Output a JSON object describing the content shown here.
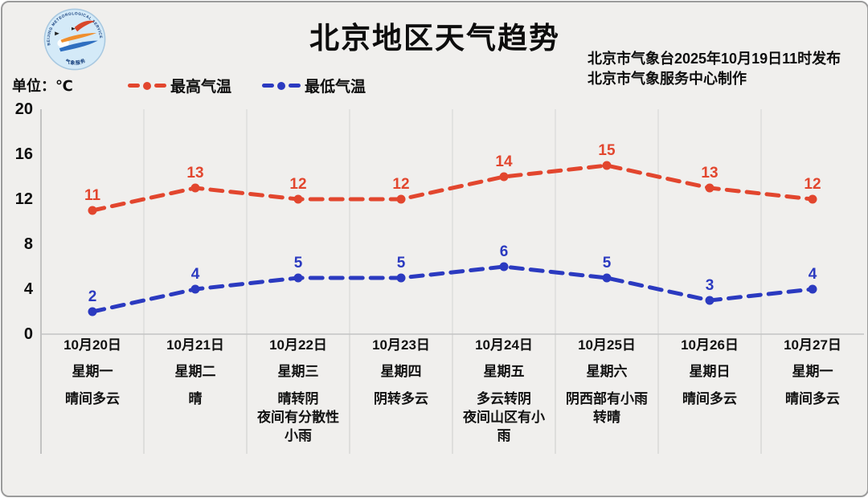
{
  "header": {
    "title": "北京地区天气趋势",
    "issued_line1": "北京市气象台2025年10月19日11时发布",
    "issued_line2": "北京市气象服务中心制作",
    "unit_label": "单位：℃",
    "logo_ring_text": "BEIJING METEOROLOGICAL SERVICE",
    "logo_bottom_text": "气象服务"
  },
  "legend": {
    "items": [
      {
        "label": "最高气温",
        "color": "#e2462e"
      },
      {
        "label": "最低气温",
        "color": "#2b3ac0"
      }
    ]
  },
  "chart_data": {
    "type": "line",
    "title": "北京地区天气趋势",
    "unit": "℃",
    "categories": [
      "10月20日",
      "10月21日",
      "10月22日",
      "10月23日",
      "10月24日",
      "10月25日",
      "10月26日",
      "10月27日"
    ],
    "series": [
      {
        "name": "最高气温",
        "color": "#e2462e",
        "values": [
          11,
          13,
          12,
          12,
          14,
          15,
          13,
          12
        ]
      },
      {
        "name": "最低气温",
        "color": "#2b3ac0",
        "values": [
          2,
          4,
          5,
          5,
          6,
          5,
          3,
          4
        ]
      }
    ],
    "ylim": [
      0,
      20
    ],
    "yticks": [
      20,
      16,
      12,
      8,
      4,
      0
    ],
    "grid": "vertical",
    "line_style": "dashed",
    "legend_position": "top-left"
  },
  "days": [
    {
      "date": "10月20日",
      "weekday": "星期一",
      "weather": "晴间多云"
    },
    {
      "date": "10月21日",
      "weekday": "星期二",
      "weather": "晴"
    },
    {
      "date": "10月22日",
      "weekday": "星期三",
      "weather": "晴转阴\n夜间有分散性\n小雨"
    },
    {
      "date": "10月23日",
      "weekday": "星期四",
      "weather": "阴转多云"
    },
    {
      "date": "10月24日",
      "weekday": "星期五",
      "weather": "多云转阴\n夜间山区有小\n雨"
    },
    {
      "date": "10月25日",
      "weekday": "星期六",
      "weather": "阴西部有小雨\n转晴"
    },
    {
      "date": "10月26日",
      "weekday": "星期日",
      "weather": "晴间多云"
    },
    {
      "date": "10月27日",
      "weekday": "星期一",
      "weather": "晴间多云"
    }
  ]
}
